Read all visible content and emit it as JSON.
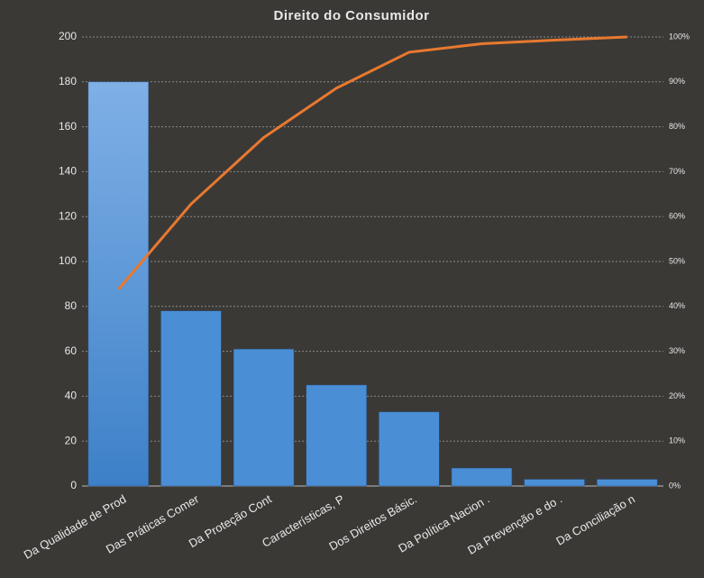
{
  "chart_data": {
    "type": "pareto",
    "title": "Direito  do Consumidor",
    "categories": [
      "Da Qualidade de Prod",
      "Das Práticas Comer",
      "Da Proteção Cont",
      "Características, P",
      "Dos Direitos Básic.",
      "Da Política Nacion .",
      "Da Prevenção e do .",
      "Da Conciliação n"
    ],
    "series": [
      {
        "type": "bar",
        "color": "#4a8fd6",
        "values": [
          180,
          78,
          61,
          45,
          33,
          8,
          3,
          3
        ]
      },
      {
        "type": "line",
        "color": "#e8792f",
        "axis": "y2",
        "values": [
          43.8,
          62.8,
          77.6,
          88.6,
          96.6,
          98.5,
          99.3,
          100
        ]
      }
    ],
    "ylim": [
      0,
      200
    ],
    "yticks": [
      0,
      20,
      40,
      60,
      80,
      100,
      120,
      140,
      160,
      180,
      200
    ],
    "y2lim": [
      0,
      100
    ],
    "y2ticks": [
      {
        "value": 0,
        "label": "0%"
      },
      {
        "value": 10,
        "label": "10%"
      },
      {
        "value": 20,
        "label": "20%"
      },
      {
        "value": 30,
        "label": "30%"
      },
      {
        "value": 40,
        "label": "40%"
      },
      {
        "value": 50,
        "label": "50%"
      },
      {
        "value": 60,
        "label": "60%"
      },
      {
        "value": 70,
        "label": "70%"
      },
      {
        "value": 80,
        "label": "80%"
      },
      {
        "value": 90,
        "label": "90%"
      },
      {
        "value": 100,
        "label": "100%"
      }
    ],
    "grid": true
  }
}
